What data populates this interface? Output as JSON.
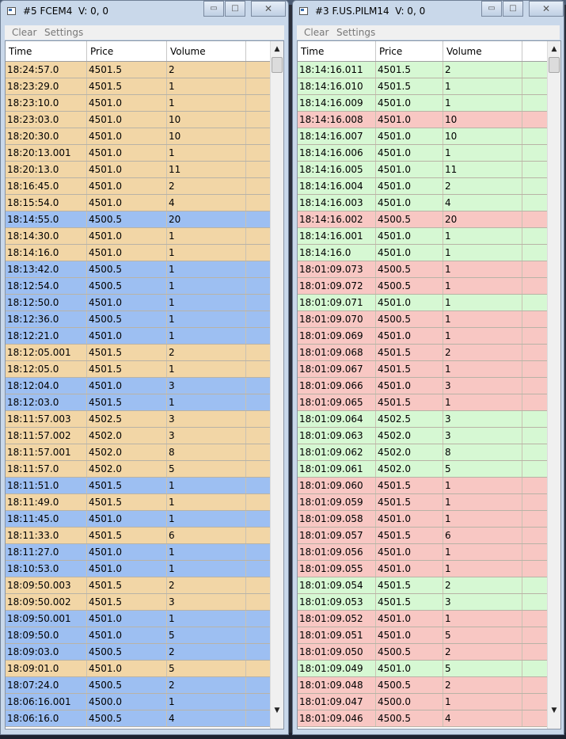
{
  "colors": {
    "tan": "#f2d6a6",
    "blue": "#9dbff2",
    "green": "#d6f8d3",
    "red": "#f8c7c3"
  },
  "window1": {
    "title": "#5 FCEM4  V: 0, 0",
    "controls": {
      "minimize": "▭",
      "maximize": "□",
      "close": "✕"
    },
    "menu": {
      "clear": "Clear",
      "settings": "Settings"
    },
    "columns": [
      "Time",
      "Price",
      "Volume"
    ],
    "rows": [
      {
        "time": "18:24:57.0",
        "price": "4501.5",
        "volume": "2",
        "color": "tan"
      },
      {
        "time": "18:23:29.0",
        "price": "4501.5",
        "volume": "1",
        "color": "tan"
      },
      {
        "time": "18:23:10.0",
        "price": "4501.0",
        "volume": "1",
        "color": "tan"
      },
      {
        "time": "18:23:03.0",
        "price": "4501.0",
        "volume": "10",
        "color": "tan"
      },
      {
        "time": "18:20:30.0",
        "price": "4501.0",
        "volume": "10",
        "color": "tan"
      },
      {
        "time": "18:20:13.001",
        "price": "4501.0",
        "volume": "1",
        "color": "tan"
      },
      {
        "time": "18:20:13.0",
        "price": "4501.0",
        "volume": "11",
        "color": "tan"
      },
      {
        "time": "18:16:45.0",
        "price": "4501.0",
        "volume": "2",
        "color": "tan"
      },
      {
        "time": "18:15:54.0",
        "price": "4501.0",
        "volume": "4",
        "color": "tan"
      },
      {
        "time": "18:14:55.0",
        "price": "4500.5",
        "volume": "20",
        "color": "blue"
      },
      {
        "time": "18:14:30.0",
        "price": "4501.0",
        "volume": "1",
        "color": "tan"
      },
      {
        "time": "18:14:16.0",
        "price": "4501.0",
        "volume": "1",
        "color": "tan"
      },
      {
        "time": "18:13:42.0",
        "price": "4500.5",
        "volume": "1",
        "color": "blue"
      },
      {
        "time": "18:12:54.0",
        "price": "4500.5",
        "volume": "1",
        "color": "blue"
      },
      {
        "time": "18:12:50.0",
        "price": "4501.0",
        "volume": "1",
        "color": "blue"
      },
      {
        "time": "18:12:36.0",
        "price": "4500.5",
        "volume": "1",
        "color": "blue"
      },
      {
        "time": "18:12:21.0",
        "price": "4501.0",
        "volume": "1",
        "color": "blue"
      },
      {
        "time": "18:12:05.001",
        "price": "4501.5",
        "volume": "2",
        "color": "tan"
      },
      {
        "time": "18:12:05.0",
        "price": "4501.5",
        "volume": "1",
        "color": "tan"
      },
      {
        "time": "18:12:04.0",
        "price": "4501.0",
        "volume": "3",
        "color": "blue"
      },
      {
        "time": "18:12:03.0",
        "price": "4501.5",
        "volume": "1",
        "color": "blue"
      },
      {
        "time": "18:11:57.003",
        "price": "4502.5",
        "volume": "3",
        "color": "tan"
      },
      {
        "time": "18:11:57.002",
        "price": "4502.0",
        "volume": "3",
        "color": "tan"
      },
      {
        "time": "18:11:57.001",
        "price": "4502.0",
        "volume": "8",
        "color": "tan"
      },
      {
        "time": "18:11:57.0",
        "price": "4502.0",
        "volume": "5",
        "color": "tan"
      },
      {
        "time": "18:11:51.0",
        "price": "4501.5",
        "volume": "1",
        "color": "blue"
      },
      {
        "time": "18:11:49.0",
        "price": "4501.5",
        "volume": "1",
        "color": "tan"
      },
      {
        "time": "18:11:45.0",
        "price": "4501.0",
        "volume": "1",
        "color": "blue"
      },
      {
        "time": "18:11:33.0",
        "price": "4501.5",
        "volume": "6",
        "color": "tan"
      },
      {
        "time": "18:11:27.0",
        "price": "4501.0",
        "volume": "1",
        "color": "blue"
      },
      {
        "time": "18:10:53.0",
        "price": "4501.0",
        "volume": "1",
        "color": "blue"
      },
      {
        "time": "18:09:50.003",
        "price": "4501.5",
        "volume": "2",
        "color": "tan"
      },
      {
        "time": "18:09:50.002",
        "price": "4501.5",
        "volume": "3",
        "color": "tan"
      },
      {
        "time": "18:09:50.001",
        "price": "4501.0",
        "volume": "1",
        "color": "blue"
      },
      {
        "time": "18:09:50.0",
        "price": "4501.0",
        "volume": "5",
        "color": "blue"
      },
      {
        "time": "18:09:03.0",
        "price": "4500.5",
        "volume": "2",
        "color": "blue"
      },
      {
        "time": "18:09:01.0",
        "price": "4501.0",
        "volume": "5",
        "color": "tan"
      },
      {
        "time": "18:07:24.0",
        "price": "4500.5",
        "volume": "2",
        "color": "blue"
      },
      {
        "time": "18:06:16.001",
        "price": "4500.0",
        "volume": "1",
        "color": "blue"
      },
      {
        "time": "18:06:16.0",
        "price": "4500.5",
        "volume": "4",
        "color": "blue"
      }
    ]
  },
  "window2": {
    "title": "#3 F.US.PILM14  V: 0, 0",
    "controls": {
      "minimize": "▭",
      "maximize": "□",
      "close": "✕"
    },
    "menu": {
      "clear": "Clear",
      "settings": "Settings"
    },
    "columns": [
      "Time",
      "Price",
      "Volume"
    ],
    "rows": [
      {
        "time": "18:14:16.011",
        "price": "4501.5",
        "volume": "2",
        "color": "green"
      },
      {
        "time": "18:14:16.010",
        "price": "4501.5",
        "volume": "1",
        "color": "green"
      },
      {
        "time": "18:14:16.009",
        "price": "4501.0",
        "volume": "1",
        "color": "green"
      },
      {
        "time": "18:14:16.008",
        "price": "4501.0",
        "volume": "10",
        "color": "red"
      },
      {
        "time": "18:14:16.007",
        "price": "4501.0",
        "volume": "10",
        "color": "green"
      },
      {
        "time": "18:14:16.006",
        "price": "4501.0",
        "volume": "1",
        "color": "green"
      },
      {
        "time": "18:14:16.005",
        "price": "4501.0",
        "volume": "11",
        "color": "green"
      },
      {
        "time": "18:14:16.004",
        "price": "4501.0",
        "volume": "2",
        "color": "green"
      },
      {
        "time": "18:14:16.003",
        "price": "4501.0",
        "volume": "4",
        "color": "green"
      },
      {
        "time": "18:14:16.002",
        "price": "4500.5",
        "volume": "20",
        "color": "red"
      },
      {
        "time": "18:14:16.001",
        "price": "4501.0",
        "volume": "1",
        "color": "green"
      },
      {
        "time": "18:14:16.0",
        "price": "4501.0",
        "volume": "1",
        "color": "green"
      },
      {
        "time": "18:01:09.073",
        "price": "4500.5",
        "volume": "1",
        "color": "red"
      },
      {
        "time": "18:01:09.072",
        "price": "4500.5",
        "volume": "1",
        "color": "red"
      },
      {
        "time": "18:01:09.071",
        "price": "4501.0",
        "volume": "1",
        "color": "green"
      },
      {
        "time": "18:01:09.070",
        "price": "4500.5",
        "volume": "1",
        "color": "red"
      },
      {
        "time": "18:01:09.069",
        "price": "4501.0",
        "volume": "1",
        "color": "red"
      },
      {
        "time": "18:01:09.068",
        "price": "4501.5",
        "volume": "2",
        "color": "red"
      },
      {
        "time": "18:01:09.067",
        "price": "4501.5",
        "volume": "1",
        "color": "red"
      },
      {
        "time": "18:01:09.066",
        "price": "4501.0",
        "volume": "3",
        "color": "red"
      },
      {
        "time": "18:01:09.065",
        "price": "4501.5",
        "volume": "1",
        "color": "red"
      },
      {
        "time": "18:01:09.064",
        "price": "4502.5",
        "volume": "3",
        "color": "green"
      },
      {
        "time": "18:01:09.063",
        "price": "4502.0",
        "volume": "3",
        "color": "green"
      },
      {
        "time": "18:01:09.062",
        "price": "4502.0",
        "volume": "8",
        "color": "green"
      },
      {
        "time": "18:01:09.061",
        "price": "4502.0",
        "volume": "5",
        "color": "green"
      },
      {
        "time": "18:01:09.060",
        "price": "4501.5",
        "volume": "1",
        "color": "red"
      },
      {
        "time": "18:01:09.059",
        "price": "4501.5",
        "volume": "1",
        "color": "red"
      },
      {
        "time": "18:01:09.058",
        "price": "4501.0",
        "volume": "1",
        "color": "red"
      },
      {
        "time": "18:01:09.057",
        "price": "4501.5",
        "volume": "6",
        "color": "red"
      },
      {
        "time": "18:01:09.056",
        "price": "4501.0",
        "volume": "1",
        "color": "red"
      },
      {
        "time": "18:01:09.055",
        "price": "4501.0",
        "volume": "1",
        "color": "red"
      },
      {
        "time": "18:01:09.054",
        "price": "4501.5",
        "volume": "2",
        "color": "green"
      },
      {
        "time": "18:01:09.053",
        "price": "4501.5",
        "volume": "3",
        "color": "green"
      },
      {
        "time": "18:01:09.052",
        "price": "4501.0",
        "volume": "1",
        "color": "red"
      },
      {
        "time": "18:01:09.051",
        "price": "4501.0",
        "volume": "5",
        "color": "red"
      },
      {
        "time": "18:01:09.050",
        "price": "4500.5",
        "volume": "2",
        "color": "red"
      },
      {
        "time": "18:01:09.049",
        "price": "4501.0",
        "volume": "5",
        "color": "green"
      },
      {
        "time": "18:01:09.048",
        "price": "4500.5",
        "volume": "2",
        "color": "red"
      },
      {
        "time": "18:01:09.047",
        "price": "4500.0",
        "volume": "1",
        "color": "red"
      },
      {
        "time": "18:01:09.046",
        "price": "4500.5",
        "volume": "4",
        "color": "red"
      }
    ]
  }
}
